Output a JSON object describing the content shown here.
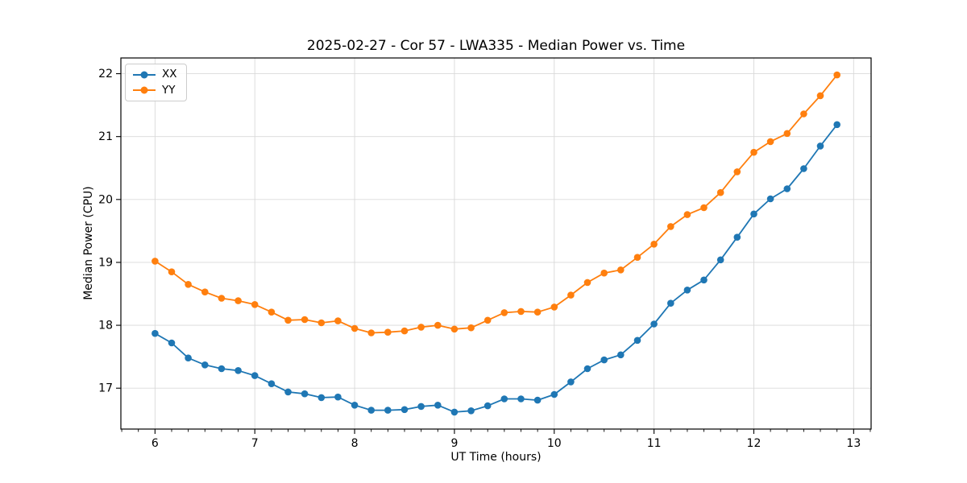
{
  "chart_data": {
    "type": "line",
    "title": "2025-02-27 - Cor 57 - LWA335 - Median Power vs. Time",
    "xlabel": "UT Time (hours)",
    "ylabel": "Median Power (CPU)",
    "x": [
      6.0,
      6.1667,
      6.3333,
      6.5,
      6.6667,
      6.8333,
      7.0,
      7.1667,
      7.3333,
      7.5,
      7.6667,
      7.8333,
      8.0,
      8.1667,
      8.3333,
      8.5,
      8.6667,
      8.8333,
      9.0,
      9.1667,
      9.3333,
      9.5,
      9.6667,
      9.8333,
      10.0,
      10.1667,
      10.3333,
      10.5,
      10.6667,
      10.8333,
      11.0,
      11.1667,
      11.3333,
      11.5,
      11.6667,
      11.8333,
      12.0,
      12.1667,
      12.3333,
      12.5,
      12.6667,
      12.8333
    ],
    "series": [
      {
        "name": "XX",
        "color": "#1f77b4",
        "marker": "circle",
        "values": [
          17.87,
          17.72,
          17.48,
          17.37,
          17.31,
          17.28,
          17.2,
          17.07,
          16.94,
          16.91,
          16.85,
          16.86,
          16.73,
          16.65,
          16.65,
          16.66,
          16.71,
          16.73,
          16.62,
          16.64,
          16.72,
          16.83,
          16.83,
          16.81,
          16.9,
          17.1,
          17.31,
          17.45,
          17.53,
          17.76,
          18.02,
          18.35,
          18.56,
          18.72,
          19.04,
          19.4,
          19.77,
          20.01,
          20.17,
          20.49,
          20.85,
          21.19
        ]
      },
      {
        "name": "YY",
        "color": "#ff7f0e",
        "marker": "circle",
        "values": [
          19.02,
          18.85,
          18.65,
          18.53,
          18.43,
          18.39,
          18.33,
          18.21,
          18.08,
          18.09,
          18.04,
          18.07,
          17.95,
          17.88,
          17.89,
          17.91,
          17.97,
          18.0,
          17.94,
          17.96,
          18.08,
          18.2,
          18.22,
          18.21,
          18.29,
          18.48,
          18.68,
          18.83,
          18.88,
          19.08,
          19.29,
          19.57,
          19.76,
          19.87,
          20.11,
          20.44,
          20.75,
          20.92,
          21.05,
          21.36,
          21.65,
          21.98
        ]
      }
    ],
    "xlim": [
      5.658,
      13.175
    ],
    "ylim": [
      16.35,
      22.25
    ],
    "xticks": [
      6,
      7,
      8,
      9,
      10,
      11,
      12,
      13
    ],
    "yticks": [
      17,
      18,
      19,
      20,
      21,
      22
    ],
    "x_minor_tick_step": 0.166667,
    "grid": true,
    "grid_color": "#d9d9d9",
    "axis_color": "#000000",
    "legend_position": "upper left"
  }
}
